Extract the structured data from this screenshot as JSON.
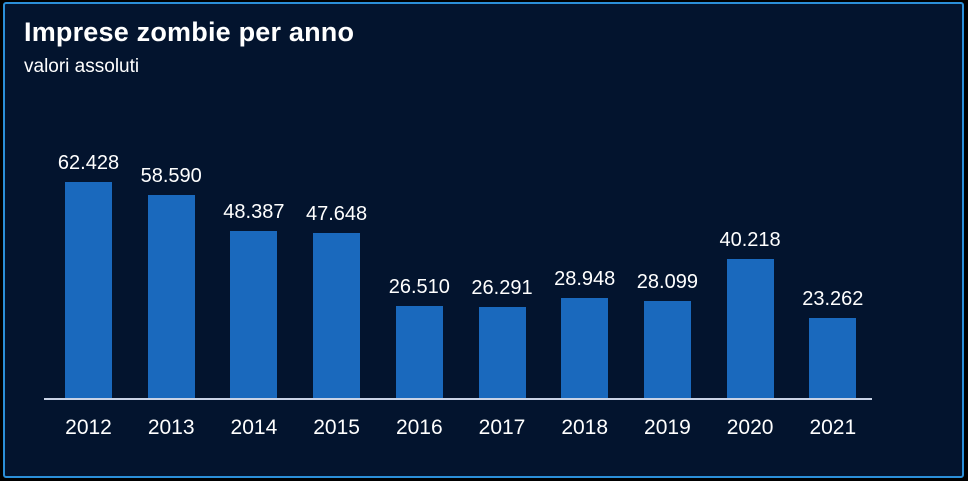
{
  "chart_data": {
    "type": "bar",
    "title": "Imprese zombie per anno",
    "subtitle": "valori assoluti",
    "categories": [
      "2012",
      "2013",
      "2014",
      "2015",
      "2016",
      "2017",
      "2018",
      "2019",
      "2020",
      "2021"
    ],
    "values": [
      62428,
      58590,
      48387,
      47648,
      26510,
      26291,
      28948,
      28099,
      40218,
      23262
    ],
    "value_labels": [
      "62.428",
      "58.590",
      "48.387",
      "47.648",
      "26.510",
      "26.291",
      "28.948",
      "28.099",
      "40.218",
      "23.262"
    ],
    "xlabel": "",
    "ylabel": "",
    "ylim": [
      0,
      62428
    ],
    "grid": false,
    "legend": null,
    "colors": {
      "background": "#03142E",
      "frame_border": "#2B8FD8",
      "outer_frame": "#000000",
      "bar": "#1A69BD",
      "axis_line": "#C9D3E6",
      "text": "#FFFFFF"
    }
  }
}
